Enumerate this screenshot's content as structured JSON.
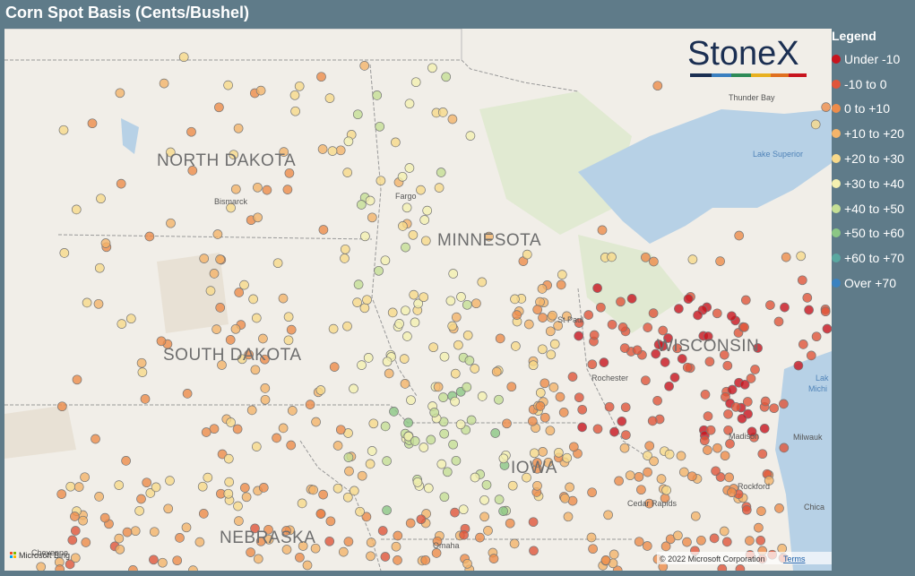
{
  "header": {
    "title": "Corn Spot Basis (Cents/Bushel)"
  },
  "legend": {
    "title": "Legend",
    "items": [
      {
        "label": "Under -10",
        "color": "#c8141e"
      },
      {
        "label": "-10 to 0",
        "color": "#e0553a"
      },
      {
        "label": "0 to +10",
        "color": "#ee8c4a"
      },
      {
        "label": "+10 to +20",
        "color": "#f4b46a"
      },
      {
        "label": "+20 to +30",
        "color": "#f8d98a"
      },
      {
        "label": "+30 to +40",
        "color": "#f4f0b0"
      },
      {
        "label": "+40 to +50",
        "color": "#c5df95"
      },
      {
        "label": "+50 to +60",
        "color": "#8cc785"
      },
      {
        "label": "+60 to +70",
        "color": "#5aa8a0"
      },
      {
        "label": "Over +70",
        "color": "#3a82c0"
      }
    ]
  },
  "logo": "StoneX",
  "map": {
    "states": [
      "NORTH DAKOTA",
      "SOUTH DAKOTA",
      "MINNESOTA",
      "WISCONSIN",
      "IOWA",
      "NEBRASKA"
    ],
    "cities": [
      "Bismarck",
      "Fargo",
      "Thunder Bay",
      "St Paul",
      "Rochester",
      "Cedar Rapids",
      "Rockford",
      "Madison",
      "Omaha",
      "Cheyenne",
      "Milwauk",
      "Chica"
    ],
    "water": [
      "Lake Superior",
      "Lak",
      "Michi"
    ]
  },
  "footer": {
    "bing": "Microsoft Bing",
    "copyright": "© 2022 Microsoft Corporation",
    "terms": "Terms"
  }
}
